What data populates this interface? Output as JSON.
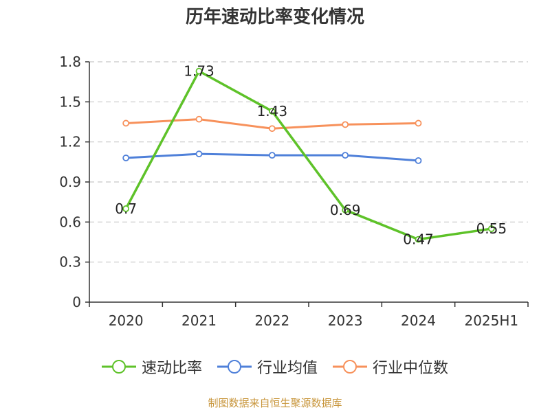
{
  "title": "历年速动比率变化情况",
  "source": "制图数据来自恒生聚源数据库",
  "legend_items": [
    {
      "label": "速动比率",
      "color": "#5ec229"
    },
    {
      "label": "行业均值",
      "color": "#4f80d9"
    },
    {
      "label": "行业中位数",
      "color": "#f7915b"
    }
  ],
  "chart_data": {
    "type": "line",
    "title": "历年速动比率变化情况",
    "categories": [
      "2020",
      "2021",
      "2022",
      "2023",
      "2024",
      "2025H1"
    ],
    "ylim": [
      0,
      1.8
    ],
    "yticks": [
      0,
      0.3,
      0.6,
      0.9,
      1.2,
      1.5,
      1.8
    ],
    "ytick_labels": [
      "0",
      "0.3",
      "0.6",
      "0.9",
      "1.2",
      "1.5",
      "1.8"
    ],
    "grid": true,
    "legend_position": "bottom",
    "series": [
      {
        "name": "速动比率",
        "color": "#5ec229",
        "values": [
          0.7,
          1.73,
          1.43,
          0.69,
          0.47,
          0.55
        ],
        "labels": [
          "0.7",
          "1.73",
          "1.43",
          "0.69",
          "0.47",
          "0.55"
        ]
      },
      {
        "name": "行业均值",
        "color": "#4f80d9",
        "values": [
          1.08,
          1.11,
          1.1,
          1.1,
          1.06,
          null
        ]
      },
      {
        "name": "行业中位数",
        "color": "#f7915b",
        "values": [
          1.34,
          1.37,
          1.3,
          1.33,
          1.34,
          null
        ]
      }
    ]
  }
}
